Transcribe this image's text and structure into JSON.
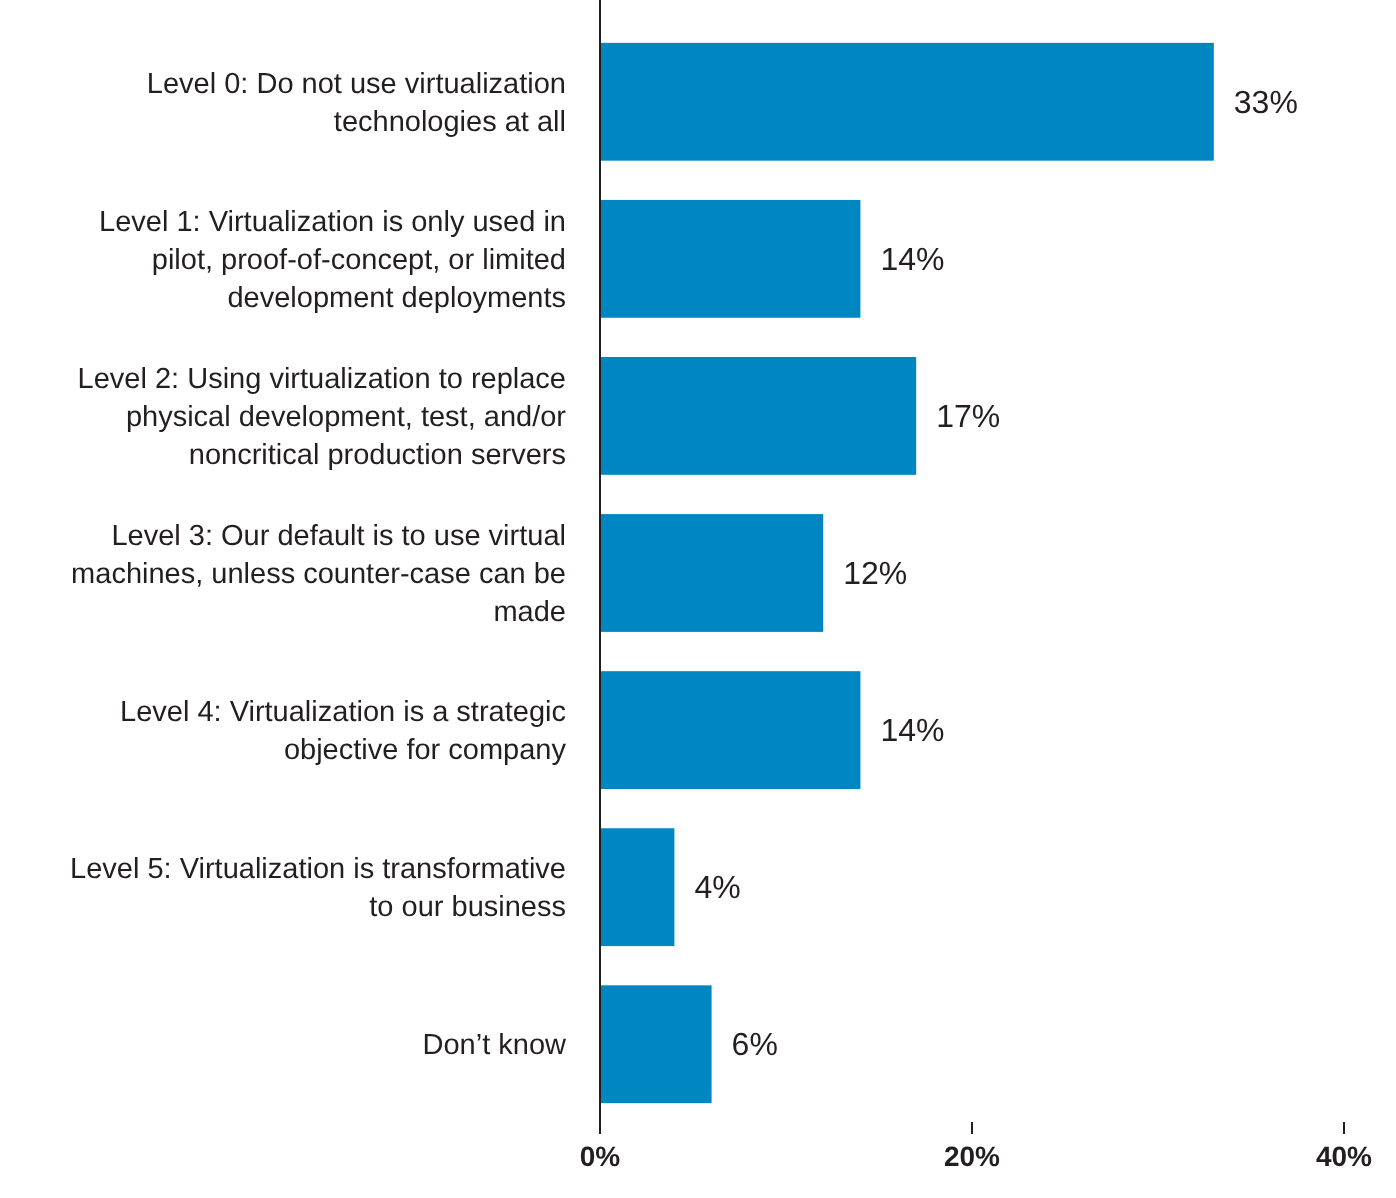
{
  "chart_data": {
    "type": "bar",
    "orientation": "horizontal",
    "categories": [
      "Level 0: Do not use virtualization technologies at all",
      "Level 1: Virtualization is only used in pilot, proof-of-concept, or limited development deployments",
      "Level 2: Using virtualization to replace physical development, test, and/or noncritical production servers",
      "Level 3: Our default is to use virtual machines, unless counter-case can be made",
      "Level 4: Virtualization is a strategic objective for company",
      "Level 5: Virtualization is transformative to our business",
      "Don’t know"
    ],
    "values": [
      33,
      14,
      17,
      12,
      14,
      4,
      6
    ],
    "color": "#0086c0",
    "xlim": [
      0,
      40
    ],
    "xticks": [
      {
        "value": 0,
        "label": "0%"
      },
      {
        "value": 20,
        "label": "20%"
      },
      {
        "value": 40,
        "label": "40%"
      }
    ],
    "value_labels": [
      "33%",
      "14%",
      "17%",
      "12%",
      "14%",
      "4%",
      "6%"
    ],
    "grid": false
  }
}
